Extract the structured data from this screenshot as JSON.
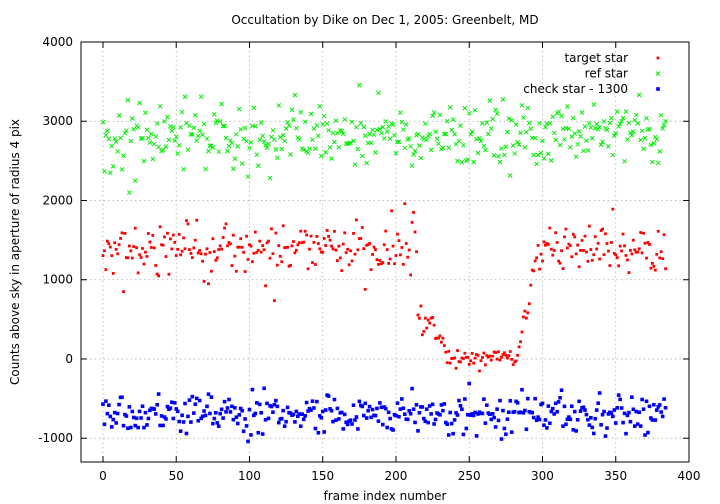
{
  "chart_data": {
    "type": "scatter",
    "title": "Occultation by Dike on Dec 1, 2005: Greenbelt, MD",
    "xlabel": "frame index number",
    "ylabel": "Counts above sky in aperture of radius 4 pix",
    "xlim": [
      -15,
      400
    ],
    "ylim": [
      -1300,
      4000
    ],
    "xticks": [
      0,
      50,
      100,
      150,
      200,
      250,
      300,
      350,
      400
    ],
    "yticks": [
      -1000,
      0,
      1000,
      2000,
      3000,
      4000
    ],
    "grid": true,
    "legend_position": "top-right",
    "series": [
      {
        "name": "target star",
        "color": "#ff0000",
        "marker": "dot",
        "baseline": 1400,
        "scatter": 170,
        "points": [
          [
            14,
            850
          ],
          [
            22,
            1650
          ],
          [
            197,
            1870
          ],
          [
            206,
            1960
          ],
          [
            212,
            1850
          ]
        ],
        "occultation": {
          "ingress_start": 215,
          "ingress_end": 240,
          "egress_start": 283,
          "egress_end": 298,
          "floor": 0,
          "floor_scatter": 55
        }
      },
      {
        "name": "ref star",
        "color": "#00ee00",
        "marker": "cross",
        "baseline": 2790,
        "scatter": 200,
        "points": [
          [
            1,
            2370
          ],
          [
            5,
            2350
          ],
          [
            18,
            2100
          ],
          [
            22,
            2250
          ],
          [
            25,
            3230
          ],
          [
            67,
            3310
          ],
          [
            131,
            3330
          ],
          [
            188,
            3360
          ],
          [
            264,
            3260
          ]
        ]
      },
      {
        "name": "check star - 1300",
        "color": "#0000ff",
        "marker": "square",
        "baseline": -680,
        "scatter": 120,
        "points": [
          [
            99,
            -1040
          ],
          [
            110,
            -370
          ],
          [
            250,
            -310
          ],
          [
            272,
            -1010
          ],
          [
            370,
            -960
          ]
        ]
      }
    ],
    "n_frames": 385
  }
}
